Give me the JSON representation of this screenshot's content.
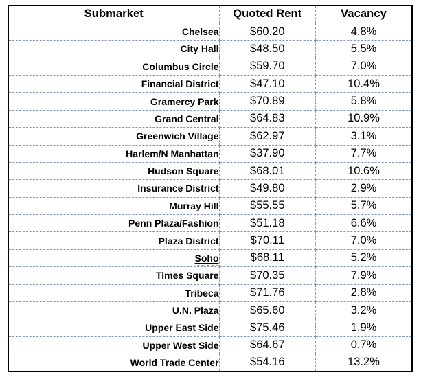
{
  "table": {
    "headers": [
      "Submarket",
      "Quoted Rent",
      "Vacancy"
    ],
    "rows": [
      {
        "submarket": "Chelsea",
        "quoted_rent": "$60.20",
        "vacancy": "4.8%"
      },
      {
        "submarket": "City Hall",
        "quoted_rent": "$48.50",
        "vacancy": "5.5%"
      },
      {
        "submarket": "Columbus Circle",
        "quoted_rent": "$59.70",
        "vacancy": "7.0%"
      },
      {
        "submarket": "Financial District",
        "quoted_rent": "$47.10",
        "vacancy": "10.4%"
      },
      {
        "submarket": "Gramercy Park",
        "quoted_rent": "$70.89",
        "vacancy": "5.8%"
      },
      {
        "submarket": "Grand Central",
        "quoted_rent": "$64.83",
        "vacancy": "10.9%"
      },
      {
        "submarket": "Greenwich Village",
        "quoted_rent": "$62.97",
        "vacancy": "3.1%"
      },
      {
        "submarket": "Harlem/N Manhattan",
        "quoted_rent": "$37.90",
        "vacancy": "7.7%"
      },
      {
        "submarket": "Hudson Square",
        "quoted_rent": "$68.01",
        "vacancy": "10.6%"
      },
      {
        "submarket": "Insurance District",
        "quoted_rent": "$49.80",
        "vacancy": "2.9%"
      },
      {
        "submarket": "Murray Hill",
        "quoted_rent": "$55.55",
        "vacancy": "5.7%"
      },
      {
        "submarket": "Penn Plaza/Fashion",
        "quoted_rent": "$51.18",
        "vacancy": "6.6%"
      },
      {
        "submarket": "Plaza District",
        "quoted_rent": "$70.11",
        "vacancy": "7.0%"
      },
      {
        "submarket": "Soho",
        "quoted_rent": "$68.11",
        "vacancy": "5.2%",
        "underline": true,
        "spellcheck": true
      },
      {
        "submarket": "Times Square",
        "quoted_rent": "$70.35",
        "vacancy": "7.9%"
      },
      {
        "submarket": "Tribeca",
        "quoted_rent": "$71.76",
        "vacancy": "2.8%"
      },
      {
        "submarket": "U.N. Plaza",
        "quoted_rent": "$65.60",
        "vacancy": "3.2%"
      },
      {
        "submarket": "Upper East Side",
        "quoted_rent": "$75.46",
        "vacancy": "1.9%"
      },
      {
        "submarket": "Upper West Side",
        "quoted_rent": "$64.67",
        "vacancy": "0.7%"
      },
      {
        "submarket": "World Trade Center",
        "quoted_rent": "$54.16",
        "vacancy": "13.2%"
      }
    ]
  },
  "colors": {
    "outer_border": "#000000",
    "inner_dashed_border": "#7f96bb",
    "text": "#000000",
    "spellcheck_squiggle": "#e2532e",
    "background": "#ffffff"
  }
}
